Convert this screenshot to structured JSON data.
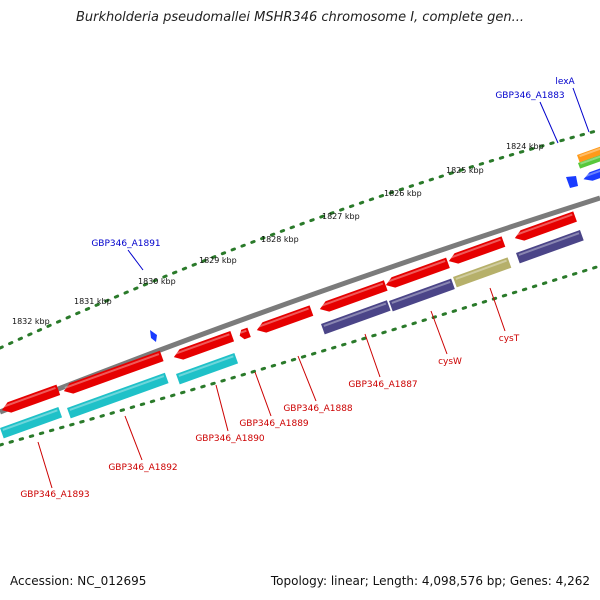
{
  "title": "Burkholderia pseudomallei MSHR346 chromosome I, complete gen...",
  "footer": {
    "accession": "Accession: NC_012695",
    "summary": "Topology: linear; Length: 4,098,576 bp; Genes: 4,262"
  },
  "colors": {
    "ruler_dots": "#2a7a2a",
    "backbone": "#7b7b7b",
    "gene_red": "#e60000",
    "gene_cyan": "#1fc1c8",
    "gene_purple": "#4b4588",
    "gene_olive": "#b6b06a",
    "label_red": "#cc0000",
    "label_blue": "#0000cc",
    "marker_blue": "#1a3cff",
    "gene_orange": "#ff9a1a",
    "gene_green": "#57c83b"
  },
  "ruler_ticks": [
    "1824 kbp",
    "1825 kbp",
    "1826 kbp",
    "1827 kbp",
    "1828 kbp",
    "1829 kbp",
    "1830 kbp",
    "1831 kbp",
    "1832 kbp"
  ],
  "blue_labels": [
    "lexA",
    "GBP346_A1883",
    "GBP346_A1891"
  ],
  "red_labels": [
    "GBP346_A1893",
    "GBP346_A1892",
    "GBP346_A1890",
    "GBP346_A1889",
    "GBP346_A1888",
    "GBP346_A1887",
    "cysW",
    "cysT"
  ]
}
